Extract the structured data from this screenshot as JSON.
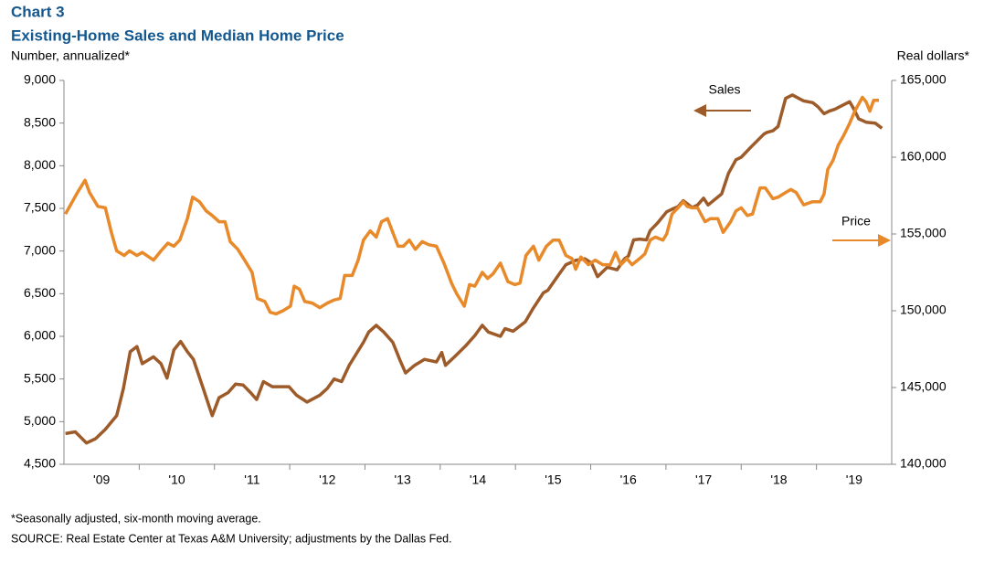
{
  "chart_data": {
    "type": "line",
    "title": "Chart 3",
    "subtitle": "Existing-Home Sales and Median Home Price",
    "ylabel": "Number, annualized*",
    "y2label": "Real dollars*",
    "notes": [
      "*Seasonally adjusted, six-month moving average.",
      "SOURCE:  Real Estate Center at Texas A&M University; adjustments by the Dallas Fed."
    ],
    "annotations": [
      {
        "text": "Sales"
      },
      {
        "text": "Price"
      }
    ],
    "xlim": [
      2009,
      2020
    ],
    "xticks": [
      {
        "value": 2009.5,
        "label": "'09"
      },
      {
        "value": 2010.5,
        "label": "'10"
      },
      {
        "value": 2011.5,
        "label": "'11"
      },
      {
        "value": 2012.5,
        "label": "'12"
      },
      {
        "value": 2013.5,
        "label": "'13"
      },
      {
        "value": 2014.5,
        "label": "'14"
      },
      {
        "value": 2015.5,
        "label": "'15"
      },
      {
        "value": 2016.5,
        "label": "'16"
      },
      {
        "value": 2017.5,
        "label": "'17"
      },
      {
        "value": 2018.5,
        "label": "'18"
      },
      {
        "value": 2019.5,
        "label": "'19"
      }
    ],
    "ylim": [
      4500,
      9000
    ],
    "yticks": [
      {
        "value": 4500,
        "label": "4,500"
      },
      {
        "value": 5000,
        "label": "5,000"
      },
      {
        "value": 5500,
        "label": "5,500"
      },
      {
        "value": 6000,
        "label": "6,000"
      },
      {
        "value": 6500,
        "label": "6,500"
      },
      {
        "value": 7000,
        "label": "7,000"
      },
      {
        "value": 7500,
        "label": "7,500"
      },
      {
        "value": 8000,
        "label": "8,000"
      },
      {
        "value": 8500,
        "label": "8,500"
      },
      {
        "value": 9000,
        "label": "9,000"
      }
    ],
    "y2lim": [
      140000,
      165000
    ],
    "y2ticks": [
      {
        "value": 140000,
        "label": "140,000"
      },
      {
        "value": 145000,
        "label": "145,000"
      },
      {
        "value": 150000,
        "label": "150,000"
      },
      {
        "value": 155000,
        "label": "155,000"
      },
      {
        "value": 160000,
        "label": "160,000"
      },
      {
        "value": 165000,
        "label": "165,000"
      }
    ],
    "grid": false,
    "series": [
      {
        "name": "Sales",
        "color": "#9e5b2a",
        "axis": "y",
        "x": [
          2009.02,
          2009.15,
          2009.3,
          2009.42,
          2009.55,
          2009.7,
          2009.79,
          2009.88,
          2009.97,
          2010.04,
          2010.19,
          2010.29,
          2010.37,
          2010.46,
          2010.55,
          2010.64,
          2010.72,
          2010.85,
          2010.97,
          2011.06,
          2011.18,
          2011.28,
          2011.38,
          2011.48,
          2011.56,
          2011.65,
          2011.77,
          2011.99,
          2012.09,
          2012.23,
          2012.4,
          2012.5,
          2012.59,
          2012.69,
          2012.79,
          2012.98,
          2013.05,
          2013.15,
          2013.25,
          2013.37,
          2013.47,
          2013.54,
          2013.66,
          2013.79,
          2013.95,
          2014.02,
          2014.07,
          2014.19,
          2014.34,
          2014.46,
          2014.56,
          2014.64,
          2014.8,
          2014.86,
          2014.97,
          2015.13,
          2015.23,
          2015.37,
          2015.43,
          2015.58,
          2015.67,
          2015.8,
          2015.92,
          2016.01,
          2016.09,
          2016.22,
          2016.35,
          2016.45,
          2016.5,
          2016.57,
          2016.65,
          2016.74,
          2016.79,
          2016.89,
          2017.01,
          2017.08,
          2017.16,
          2017.23,
          2017.35,
          2017.42,
          2017.5,
          2017.56,
          2017.74,
          2017.83,
          2017.93,
          2018.0,
          2018.13,
          2018.3,
          2018.34,
          2018.42,
          2018.49,
          2018.59,
          2018.68,
          2018.83,
          2018.95,
          2019.02,
          2019.1,
          2019.17,
          2019.24,
          2019.44,
          2019.5,
          2019.56,
          2019.66,
          2019.78,
          2019.87
        ],
        "values": [
          4860,
          4880,
          4750,
          4800,
          4910,
          5070,
          5390,
          5820,
          5880,
          5680,
          5760,
          5680,
          5510,
          5840,
          5940,
          5820,
          5730,
          5390,
          5070,
          5280,
          5340,
          5440,
          5430,
          5340,
          5260,
          5470,
          5410,
          5410,
          5310,
          5230,
          5310,
          5390,
          5500,
          5470,
          5660,
          5930,
          6050,
          6130,
          6050,
          5930,
          5710,
          5570,
          5660,
          5730,
          5700,
          5810,
          5660,
          5760,
          5890,
          6010,
          6130,
          6050,
          6000,
          6090,
          6060,
          6170,
          6320,
          6510,
          6540,
          6730,
          6840,
          6890,
          6910,
          6860,
          6700,
          6810,
          6780,
          6910,
          6940,
          7130,
          7140,
          7130,
          7240,
          7330,
          7460,
          7490,
          7520,
          7590,
          7510,
          7540,
          7620,
          7540,
          7670,
          7910,
          8070,
          8100,
          8220,
          8370,
          8390,
          8410,
          8460,
          8790,
          8830,
          8760,
          8740,
          8690,
          8610,
          8640,
          8660,
          8750,
          8660,
          8550,
          8510,
          8500,
          8440
        ]
      },
      {
        "name": "Price",
        "color": "#e8892a",
        "axis": "y2",
        "x": [
          2009.02,
          2009.18,
          2009.28,
          2009.34,
          2009.45,
          2009.55,
          2009.63,
          2009.7,
          2009.8,
          2009.87,
          2009.97,
          2010.04,
          2010.19,
          2010.29,
          2010.38,
          2010.46,
          2010.54,
          2010.64,
          2010.71,
          2010.8,
          2010.89,
          2010.97,
          2011.06,
          2011.14,
          2011.21,
          2011.31,
          2011.4,
          2011.5,
          2011.57,
          2011.67,
          2011.74,
          2011.82,
          2011.91,
          2012.01,
          2012.06,
          2012.13,
          2012.2,
          2012.3,
          2012.4,
          2012.5,
          2012.59,
          2012.67,
          2012.73,
          2012.83,
          2012.91,
          2012.98,
          2013.07,
          2013.15,
          2013.22,
          2013.3,
          2013.37,
          2013.44,
          2013.51,
          2013.59,
          2013.67,
          2013.76,
          2013.85,
          2013.95,
          2014.05,
          2014.15,
          2014.22,
          2014.32,
          2014.39,
          2014.46,
          2014.56,
          2014.63,
          2014.7,
          2014.8,
          2014.9,
          2014.99,
          2015.06,
          2015.14,
          2015.24,
          2015.31,
          2015.41,
          2015.5,
          2015.58,
          2015.67,
          2015.75,
          2015.8,
          2015.87,
          2015.97,
          2016.06,
          2016.16,
          2016.26,
          2016.33,
          2016.4,
          2016.48,
          2016.55,
          2016.65,
          2016.72,
          2016.79,
          2016.86,
          2016.96,
          2017.01,
          2017.08,
          2017.16,
          2017.23,
          2017.28,
          2017.35,
          2017.42,
          2017.52,
          2017.59,
          2017.69,
          2017.76,
          2017.86,
          2017.93,
          2018.0,
          2018.08,
          2018.15,
          2018.25,
          2018.32,
          2018.42,
          2018.49,
          2018.59,
          2018.66,
          2018.73,
          2018.83,
          2018.95,
          2019.05,
          2019.1,
          2019.15,
          2019.22,
          2019.29,
          2019.36,
          2019.44,
          2019.51,
          2019.61,
          2019.66,
          2019.71,
          2019.76,
          2019.83
        ],
        "values": [
          156300,
          157700,
          158500,
          157700,
          156800,
          156700,
          155100,
          153900,
          153600,
          153900,
          153600,
          153800,
          153300,
          153900,
          154400,
          154200,
          154600,
          156000,
          157400,
          157100,
          156500,
          156200,
          155800,
          155800,
          154500,
          154000,
          153300,
          152500,
          150800,
          150600,
          149900,
          149800,
          150000,
          150300,
          151600,
          151400,
          150600,
          150500,
          150200,
          150500,
          150700,
          150800,
          152300,
          152300,
          153300,
          154600,
          155200,
          154800,
          155800,
          156000,
          155100,
          154200,
          154200,
          154600,
          154000,
          154500,
          154300,
          154200,
          153100,
          151800,
          151100,
          150300,
          151700,
          151600,
          152500,
          152100,
          152400,
          153100,
          151900,
          151700,
          151800,
          153600,
          154200,
          153300,
          154200,
          154600,
          154600,
          153600,
          153400,
          152700,
          153500,
          153000,
          153300,
          153000,
          153000,
          153800,
          153000,
          153400,
          153000,
          153400,
          153700,
          154600,
          154800,
          154600,
          155000,
          156300,
          156700,
          157100,
          156800,
          156700,
          156700,
          155800,
          156000,
          156000,
          155100,
          155800,
          156500,
          156700,
          156200,
          156300,
          158000,
          158000,
          157300,
          157400,
          157700,
          157900,
          157700,
          156900,
          157100,
          157100,
          157600,
          159200,
          159800,
          160800,
          161400,
          162200,
          163000,
          163900,
          163600,
          163000,
          163700,
          163700
        ]
      }
    ]
  }
}
